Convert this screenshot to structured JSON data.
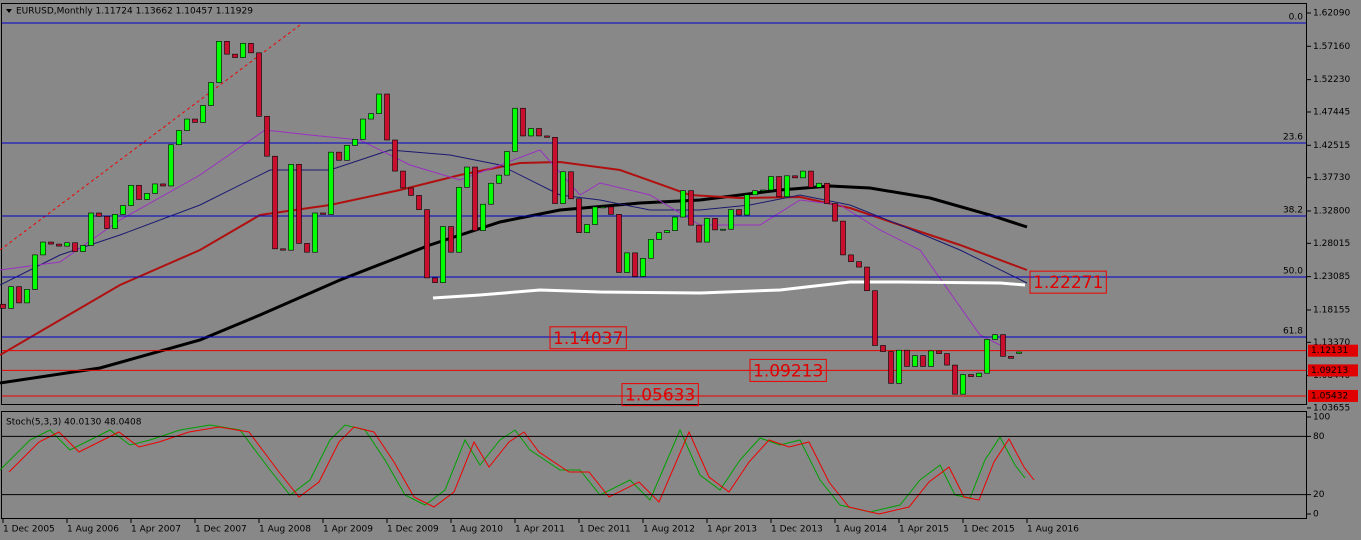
{
  "header": {
    "title": "EURUSD,Monthly  1.11724 1.13662 1.10457 1.11929"
  },
  "chart_data": {
    "type": "candlestick",
    "open": [
      1.19,
      1.184,
      1.216,
      1.192,
      1.212,
      1.263,
      1.282,
      1.279,
      1.276,
      1.281,
      1.268,
      1.277,
      1.325,
      1.32,
      1.302,
      1.323,
      1.336,
      1.366,
      1.345,
      1.354,
      1.368,
      1.365,
      1.426,
      1.447,
      1.464,
      1.459,
      1.484,
      1.518,
      1.579,
      1.56,
      1.555,
      1.576,
      1.562,
      1.468,
      1.409,
      1.272,
      1.27,
      1.397,
      1.28,
      1.267,
      1.325,
      1.323,
      1.415,
      1.403,
      1.425,
      1.434,
      1.464,
      1.472,
      1.501,
      1.433,
      1.387,
      1.362,
      1.351,
      1.33,
      1.229,
      1.222,
      1.305,
      1.267,
      1.363,
      1.393,
      1.299,
      1.338,
      1.369,
      1.381,
      1.416,
      1.48,
      1.439,
      1.45,
      1.439,
      1.437,
      1.339,
      1.386,
      1.346,
      1.296,
      1.308,
      1.334,
      1.334,
      1.323,
      1.237,
      1.266,
      1.231,
      1.258,
      1.286,
      1.296,
      1.299,
      1.319,
      1.358,
      1.307,
      1.282,
      1.317,
      1.3,
      1.301,
      1.33,
      1.322,
      1.352,
      1.358,
      1.359,
      1.379,
      1.349,
      1.38,
      1.377,
      1.387,
      1.363,
      1.369,
      1.339,
      1.313,
      1.263,
      1.253,
      1.245,
      1.21,
      1.129,
      1.12,
      1.073,
      1.122,
      1.098,
      1.114,
      1.098,
      1.121,
      1.117,
      1.1,
      1.057,
      1.086,
      1.083,
      1.088,
      1.138,
      1.145,
      1.113,
      1.11724
    ],
    "close": [
      1.184,
      1.216,
      1.192,
      1.212,
      1.263,
      1.282,
      1.279,
      1.276,
      1.281,
      1.268,
      1.277,
      1.325,
      1.32,
      1.302,
      1.323,
      1.336,
      1.366,
      1.345,
      1.354,
      1.368,
      1.365,
      1.426,
      1.447,
      1.464,
      1.459,
      1.484,
      1.518,
      1.579,
      1.56,
      1.555,
      1.576,
      1.562,
      1.468,
      1.409,
      1.272,
      1.27,
      1.397,
      1.28,
      1.267,
      1.325,
      1.323,
      1.415,
      1.403,
      1.425,
      1.434,
      1.464,
      1.472,
      1.501,
      1.433,
      1.387,
      1.362,
      1.351,
      1.33,
      1.229,
      1.222,
      1.305,
      1.267,
      1.363,
      1.393,
      1.299,
      1.338,
      1.369,
      1.381,
      1.416,
      1.48,
      1.439,
      1.45,
      1.439,
      1.437,
      1.339,
      1.386,
      1.346,
      1.296,
      1.308,
      1.334,
      1.334,
      1.323,
      1.237,
      1.266,
      1.231,
      1.258,
      1.286,
      1.296,
      1.299,
      1.319,
      1.358,
      1.307,
      1.282,
      1.317,
      1.3,
      1.301,
      1.33,
      1.322,
      1.352,
      1.358,
      1.359,
      1.379,
      1.349,
      1.38,
      1.377,
      1.387,
      1.363,
      1.369,
      1.339,
      1.313,
      1.263,
      1.253,
      1.245,
      1.21,
      1.129,
      1.12,
      1.073,
      1.122,
      1.098,
      1.114,
      1.098,
      1.121,
      1.117,
      1.1,
      1.057,
      1.086,
      1.083,
      1.088,
      1.138,
      1.145,
      1.113,
      1.11,
      1.11929
    ],
    "up_color": "#00ff00",
    "down_color": "#c8102e",
    "ylim": [
      1.0439,
      1.6342
    ],
    "yticks": [
      {
        "value": 1.6209,
        "label": "1.62090"
      },
      {
        "value": 1.5716,
        "label": "1.57160"
      },
      {
        "value": 1.5223,
        "label": "1.52230"
      },
      {
        "value": 1.47445,
        "label": "1.47445"
      },
      {
        "value": 1.42515,
        "label": "1.42515"
      },
      {
        "value": 1.3773,
        "label": "1.37730"
      },
      {
        "value": 1.328,
        "label": "1.32800"
      },
      {
        "value": 1.28015,
        "label": "1.28015"
      },
      {
        "value": 1.23085,
        "label": "1.23085"
      },
      {
        "value": 1.18155,
        "label": "1.18155"
      },
      {
        "value": 1.1337,
        "label": "1.13370"
      },
      {
        "value": 1.0844,
        "label": "1.08440"
      },
      {
        "value": 1.03655,
        "label": "1.03655"
      }
    ],
    "time_labels": [
      "1 Dec 2005",
      "1 Aug 2006",
      "1 Apr 2007",
      "1 Dec 2007",
      "1 Aug 2008",
      "1 Apr 2009",
      "1 Dec 2009",
      "1 Aug 2010",
      "1 Apr 2011",
      "1 Dec 2011",
      "1 Aug 2012",
      "1 Apr 2013",
      "1 Dec 2013",
      "1 Aug 2014",
      "1 Apr 2015",
      "1 Dec 2015",
      "1 Aug 2016"
    ],
    "fib_levels": [
      {
        "label": "0.0",
        "price": 1.6061
      },
      {
        "label": "23.6",
        "price": 1.4286
      },
      {
        "label": "38.2",
        "price": 1.3206
      },
      {
        "label": "50.0",
        "price": 1.2303
      },
      {
        "label": "61.8",
        "price": 1.1415
      }
    ],
    "levels": [
      1.12131,
      1.09213,
      1.05432
    ],
    "price_boxes": [
      1.14037,
      1.09213,
      1.05633,
      1.22271
    ]
  },
  "stoch": {
    "title": "Stoch(5,3,3) 40.0130 48.0408",
    "ylim": [
      0,
      100
    ],
    "yticks": [
      100,
      80,
      20,
      0
    ],
    "levels": [
      80,
      20
    ]
  }
}
